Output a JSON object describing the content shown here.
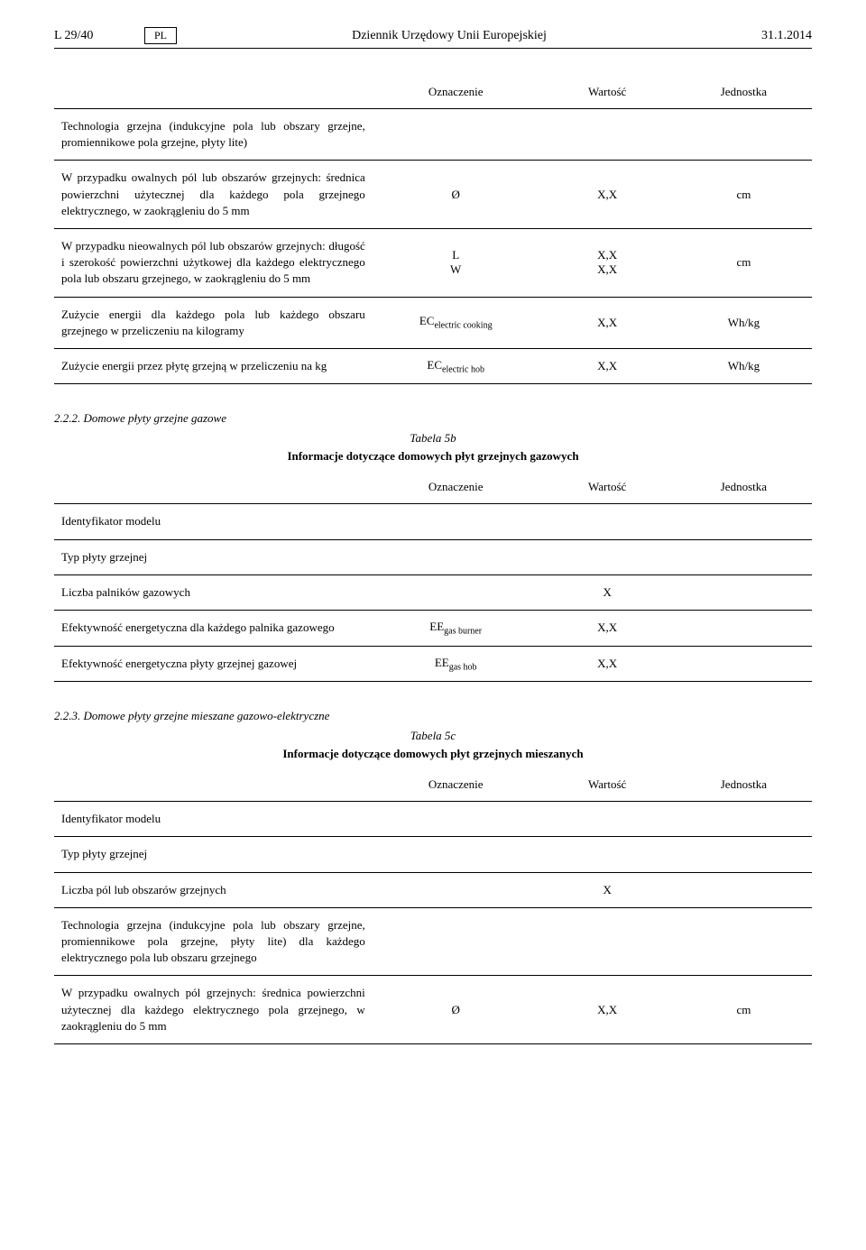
{
  "header": {
    "page_ref": "L 29/40",
    "lang": "PL",
    "journal": "Dziennik Urzędowy Unii Europejskiej",
    "date": "31.1.2014"
  },
  "table1": {
    "headers": {
      "sym": "Oznaczenie",
      "val": "Wartość",
      "unit": "Jednostka"
    },
    "rows": [
      {
        "desc": "Technologia grzejna (indukcyjne pola lub obszary grzejne, promiennikowe pola grzejne, płyty lite)",
        "sym": "",
        "val": "",
        "unit": ""
      },
      {
        "desc": "W przypadku owalnych pól lub obszarów grzejnych: średnica powierzchni użytecznej dla każdego pola grzejnego elektrycznego, w zaokrągleniu do 5 mm",
        "sym": "Ø",
        "val": "X,X",
        "unit": "cm"
      },
      {
        "desc": "W przypadku nieowalnych pól lub obszarów grzejnych: długość i szerokość powierzchni użytkowej dla każdego elektrycznego pola lub obszaru grzejnego, w zaokrągleniu do 5 mm",
        "sym": "L\nW",
        "val": "X,X\nX,X",
        "unit": "cm"
      },
      {
        "desc": "Zużycie energii dla każdego pola lub każdego obszaru grzejnego w przeliczeniu na kilogramy",
        "sym_html": "EC<sub>electric cooking</sub>",
        "val": "X,X",
        "unit": "Wh/kg"
      },
      {
        "desc": "Zużycie energii przez płytę grzejną w przeliczeniu na kg",
        "sym_html": "EC<sub>electric hob</sub>",
        "val": "X,X",
        "unit": "Wh/kg"
      }
    ]
  },
  "section2": {
    "heading": "2.2.2. Domowe płyty grzejne gazowe",
    "caption": "Tabela 5b",
    "subtitle": "Informacje dotyczące domowych płyt grzejnych gazowych",
    "headers": {
      "sym": "Oznaczenie",
      "val": "Wartość",
      "unit": "Jednostka"
    },
    "rows": [
      {
        "desc": "Identyfikator modelu",
        "sym": "",
        "val": "",
        "unit": ""
      },
      {
        "desc": "Typ płyty grzejnej",
        "sym": "",
        "val": "",
        "unit": ""
      },
      {
        "desc": "Liczba palników gazowych",
        "sym": "",
        "val": "X",
        "unit": ""
      },
      {
        "desc": "Efektywność energetyczna dla każdego palnika gazowego",
        "sym_html": "EE<sub>gas burner</sub>",
        "val": "X,X",
        "unit": ""
      },
      {
        "desc": "Efektywność energetyczna płyty grzejnej gazowej",
        "sym_html": "EE<sub>gas hob</sub>",
        "val": "X,X",
        "unit": ""
      }
    ]
  },
  "section3": {
    "heading": "2.2.3. Domowe płyty grzejne mieszane gazowo-elektryczne",
    "caption": "Tabela 5c",
    "subtitle": "Informacje dotyczące domowych płyt grzejnych mieszanych",
    "headers": {
      "sym": "Oznaczenie",
      "val": "Wartość",
      "unit": "Jednostka"
    },
    "rows": [
      {
        "desc": "Identyfikator modelu",
        "sym": "",
        "val": "",
        "unit": ""
      },
      {
        "desc": "Typ płyty grzejnej",
        "sym": "",
        "val": "",
        "unit": ""
      },
      {
        "desc": "Liczba pól lub obszarów grzejnych",
        "sym": "",
        "val": "X",
        "unit": ""
      },
      {
        "desc": "Technologia grzejna (indukcyjne pola lub obszary grzejne, promiennikowe pola grzejne, płyty lite) dla każdego elektrycznego pola lub obszaru grzejnego",
        "sym": "",
        "val": "",
        "unit": ""
      },
      {
        "desc": "W przypadku owalnych pól grzejnych: średnica powierzchni użytecznej dla każdego elektrycznego pola grzejnego, w zaokrągleniu do 5 mm",
        "sym": "Ø",
        "val": "X,X",
        "unit": "cm"
      }
    ]
  }
}
